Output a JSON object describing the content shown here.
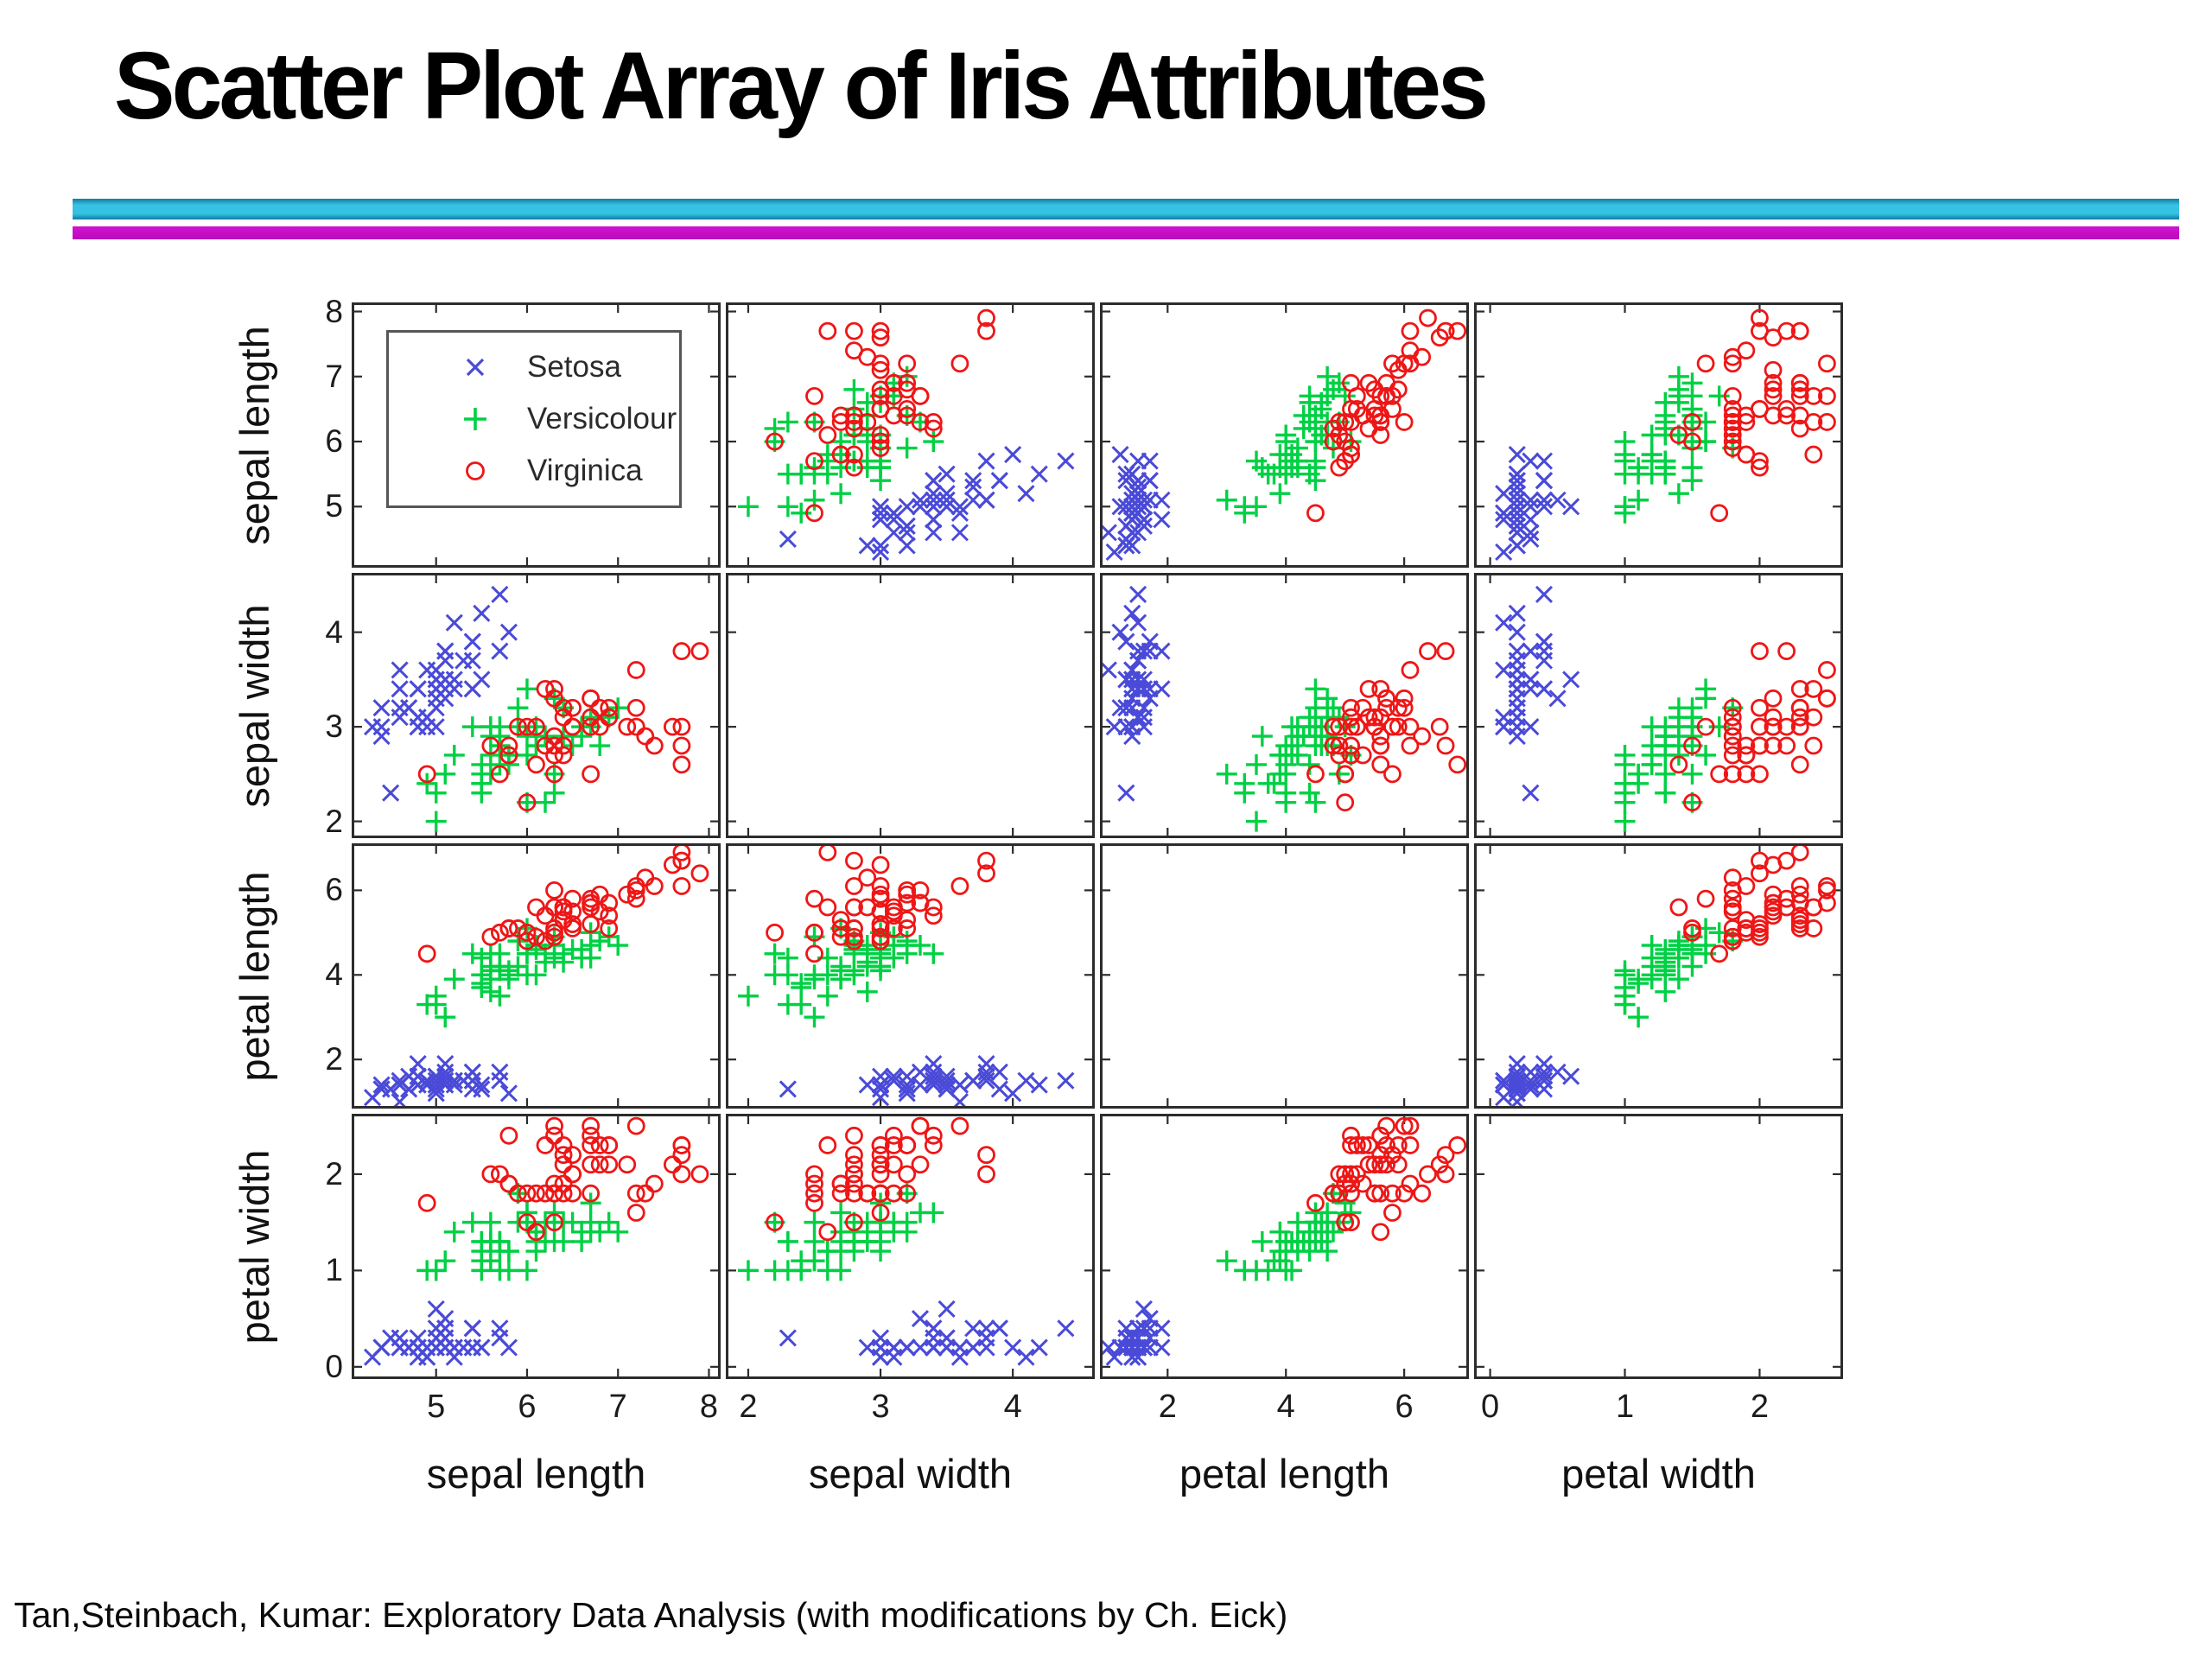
{
  "slide": {
    "title": "Scatter Plot Array of Iris Attributes",
    "footer": "Tan,Steinbach, Kumar: Exploratory Data Analysis (with modifications by Ch. Eick)"
  },
  "colors": {
    "title_text": "#000000",
    "divider_cyan": "#2ab2d4",
    "divider_magenta": "#c410c4",
    "cell_border": "#2c2c2c",
    "legend_border": "#565656",
    "axis_text": "#1c1c1c",
    "setosa": "#4a4ad8",
    "versicolour": "#00d044",
    "virginica": "#ee1616"
  },
  "legend": {
    "items": [
      {
        "label": "Setosa",
        "marker": "x",
        "color_key": "setosa"
      },
      {
        "label": "Versicolour",
        "marker": "+",
        "color_key": "versicolour"
      },
      {
        "label": "Virginica",
        "marker": "o",
        "color_key": "virginica"
      }
    ]
  },
  "chart_data": {
    "type": "scatter",
    "subtype": "scatter-plot-matrix",
    "title": "Scatter Plot Array of Iris Attributes",
    "grid": false,
    "empty_diagonal": true,
    "legend_position": "inside first diagonal cell (top-left)",
    "point_format": [
      "sepal_length",
      "sepal_width",
      "petal_length",
      "petal_width"
    ],
    "attributes": [
      {
        "key": "sepal_length",
        "label": "sepal length",
        "lim": [
          4.1,
          8.1
        ],
        "ticks": [
          5,
          6,
          7,
          8
        ]
      },
      {
        "key": "sepal_width",
        "label": "sepal width",
        "lim": [
          1.85,
          4.6
        ],
        "ticks": [
          2,
          3,
          4
        ]
      },
      {
        "key": "petal_length",
        "label": "petal length",
        "lim": [
          0.9,
          7.05
        ],
        "ticks": [
          2,
          4,
          6
        ]
      },
      {
        "key": "petal_width",
        "label": "petal width",
        "lim": [
          -0.1,
          2.6
        ],
        "ticks": [
          0,
          1,
          2
        ]
      }
    ],
    "series": [
      {
        "name": "Setosa",
        "marker": "x",
        "color": "#4a4ad8",
        "points": [
          [
            5.1,
            3.5,
            1.4,
            0.2
          ],
          [
            4.9,
            3.0,
            1.4,
            0.2
          ],
          [
            4.7,
            3.2,
            1.3,
            0.2
          ],
          [
            4.6,
            3.1,
            1.5,
            0.2
          ],
          [
            5.0,
            3.6,
            1.4,
            0.2
          ],
          [
            5.4,
            3.9,
            1.7,
            0.4
          ],
          [
            4.6,
            3.4,
            1.4,
            0.3
          ],
          [
            5.0,
            3.4,
            1.5,
            0.2
          ],
          [
            4.4,
            2.9,
            1.4,
            0.2
          ],
          [
            4.9,
            3.1,
            1.5,
            0.1
          ],
          [
            5.4,
            3.7,
            1.5,
            0.2
          ],
          [
            4.8,
            3.4,
            1.6,
            0.2
          ],
          [
            4.8,
            3.0,
            1.4,
            0.1
          ],
          [
            4.3,
            3.0,
            1.1,
            0.1
          ],
          [
            5.8,
            4.0,
            1.2,
            0.2
          ],
          [
            5.7,
            4.4,
            1.5,
            0.4
          ],
          [
            5.4,
            3.9,
            1.3,
            0.4
          ],
          [
            5.1,
            3.5,
            1.4,
            0.3
          ],
          [
            5.7,
            3.8,
            1.7,
            0.3
          ],
          [
            5.1,
            3.8,
            1.5,
            0.3
          ],
          [
            5.4,
            3.4,
            1.7,
            0.2
          ],
          [
            5.1,
            3.7,
            1.5,
            0.4
          ],
          [
            4.6,
            3.6,
            1.0,
            0.2
          ],
          [
            5.1,
            3.3,
            1.7,
            0.5
          ],
          [
            4.8,
            3.4,
            1.9,
            0.2
          ],
          [
            5.0,
            3.0,
            1.6,
            0.2
          ],
          [
            5.0,
            3.4,
            1.6,
            0.4
          ],
          [
            5.2,
            3.5,
            1.5,
            0.2
          ],
          [
            5.2,
            3.4,
            1.4,
            0.2
          ],
          [
            4.7,
            3.2,
            1.6,
            0.2
          ],
          [
            4.8,
            3.1,
            1.6,
            0.2
          ],
          [
            5.4,
            3.4,
            1.5,
            0.4
          ],
          [
            5.2,
            4.1,
            1.5,
            0.1
          ],
          [
            5.5,
            4.2,
            1.4,
            0.2
          ],
          [
            4.9,
            3.1,
            1.5,
            0.2
          ],
          [
            5.0,
            3.2,
            1.2,
            0.2
          ],
          [
            5.5,
            3.5,
            1.3,
            0.2
          ],
          [
            4.9,
            3.6,
            1.4,
            0.1
          ],
          [
            4.4,
            3.0,
            1.3,
            0.2
          ],
          [
            5.1,
            3.4,
            1.5,
            0.2
          ],
          [
            5.0,
            3.5,
            1.3,
            0.3
          ],
          [
            4.5,
            2.3,
            1.3,
            0.3
          ],
          [
            4.4,
            3.2,
            1.3,
            0.2
          ],
          [
            5.0,
            3.5,
            1.6,
            0.6
          ],
          [
            5.1,
            3.8,
            1.9,
            0.4
          ],
          [
            4.8,
            3.0,
            1.4,
            0.3
          ],
          [
            5.1,
            3.8,
            1.6,
            0.2
          ],
          [
            4.6,
            3.2,
            1.4,
            0.2
          ],
          [
            5.3,
            3.7,
            1.5,
            0.2
          ],
          [
            5.0,
            3.3,
            1.4,
            0.2
          ]
        ]
      },
      {
        "name": "Versicolour",
        "marker": "+",
        "color": "#00d044",
        "points": [
          [
            7.0,
            3.2,
            4.7,
            1.4
          ],
          [
            6.4,
            3.2,
            4.5,
            1.5
          ],
          [
            6.9,
            3.1,
            4.9,
            1.5
          ],
          [
            5.5,
            2.3,
            4.0,
            1.3
          ],
          [
            6.5,
            2.8,
            4.6,
            1.5
          ],
          [
            5.7,
            2.8,
            4.5,
            1.3
          ],
          [
            6.3,
            3.3,
            4.7,
            1.6
          ],
          [
            4.9,
            2.4,
            3.3,
            1.0
          ],
          [
            6.6,
            2.9,
            4.6,
            1.3
          ],
          [
            5.2,
            2.7,
            3.9,
            1.4
          ],
          [
            5.0,
            2.0,
            3.5,
            1.0
          ],
          [
            5.9,
            3.0,
            4.2,
            1.5
          ],
          [
            6.0,
            2.2,
            4.0,
            1.0
          ],
          [
            6.1,
            2.9,
            4.7,
            1.4
          ],
          [
            5.6,
            2.9,
            3.6,
            1.3
          ],
          [
            6.7,
            3.1,
            4.4,
            1.4
          ],
          [
            5.6,
            3.0,
            4.5,
            1.5
          ],
          [
            5.8,
            2.7,
            4.1,
            1.0
          ],
          [
            6.2,
            2.2,
            4.5,
            1.5
          ],
          [
            5.6,
            2.5,
            3.9,
            1.1
          ],
          [
            5.9,
            3.2,
            4.8,
            1.8
          ],
          [
            6.1,
            2.8,
            4.0,
            1.3
          ],
          [
            6.3,
            2.5,
            4.9,
            1.5
          ],
          [
            6.1,
            2.8,
            4.7,
            1.2
          ],
          [
            6.4,
            2.9,
            4.3,
            1.3
          ],
          [
            6.6,
            3.0,
            4.4,
            1.4
          ],
          [
            6.8,
            2.8,
            4.8,
            1.4
          ],
          [
            6.7,
            3.0,
            5.0,
            1.7
          ],
          [
            6.0,
            2.9,
            4.5,
            1.5
          ],
          [
            5.7,
            2.6,
            3.5,
            1.0
          ],
          [
            5.5,
            2.4,
            3.8,
            1.1
          ],
          [
            5.5,
            2.4,
            3.7,
            1.0
          ],
          [
            5.8,
            2.7,
            3.9,
            1.2
          ],
          [
            6.0,
            2.7,
            5.1,
            1.6
          ],
          [
            5.4,
            3.0,
            4.5,
            1.5
          ],
          [
            6.0,
            3.4,
            4.5,
            1.6
          ],
          [
            6.7,
            3.1,
            4.7,
            1.5
          ],
          [
            6.3,
            2.3,
            4.4,
            1.3
          ],
          [
            5.6,
            3.0,
            4.1,
            1.3
          ],
          [
            5.5,
            2.5,
            4.0,
            1.3
          ],
          [
            5.5,
            2.6,
            4.4,
            1.2
          ],
          [
            6.1,
            3.0,
            4.6,
            1.4
          ],
          [
            5.8,
            2.6,
            4.0,
            1.2
          ],
          [
            5.0,
            2.3,
            3.3,
            1.0
          ],
          [
            5.6,
            2.7,
            4.2,
            1.3
          ],
          [
            5.7,
            3.0,
            4.2,
            1.2
          ],
          [
            5.7,
            2.9,
            4.2,
            1.3
          ],
          [
            6.2,
            2.9,
            4.3,
            1.3
          ],
          [
            5.1,
            2.5,
            3.0,
            1.1
          ],
          [
            5.7,
            2.8,
            4.1,
            1.3
          ]
        ]
      },
      {
        "name": "Virginica",
        "marker": "o",
        "color": "#ee1616",
        "points": [
          [
            6.3,
            3.3,
            6.0,
            2.5
          ],
          [
            5.8,
            2.7,
            5.1,
            1.9
          ],
          [
            7.1,
            3.0,
            5.9,
            2.1
          ],
          [
            6.3,
            2.9,
            5.6,
            1.8
          ],
          [
            6.5,
            3.0,
            5.8,
            2.2
          ],
          [
            7.6,
            3.0,
            6.6,
            2.1
          ],
          [
            4.9,
            2.5,
            4.5,
            1.7
          ],
          [
            7.3,
            2.9,
            6.3,
            1.8
          ],
          [
            6.7,
            2.5,
            5.8,
            1.8
          ],
          [
            7.2,
            3.6,
            6.1,
            2.5
          ],
          [
            6.5,
            3.2,
            5.1,
            2.0
          ],
          [
            6.4,
            2.7,
            5.3,
            1.9
          ],
          [
            6.8,
            3.0,
            5.5,
            2.1
          ],
          [
            5.7,
            2.5,
            5.0,
            2.0
          ],
          [
            5.8,
            2.8,
            5.1,
            2.4
          ],
          [
            6.4,
            3.2,
            5.3,
            2.3
          ],
          [
            6.5,
            3.0,
            5.5,
            1.8
          ],
          [
            7.7,
            3.8,
            6.7,
            2.2
          ],
          [
            7.7,
            2.6,
            6.9,
            2.3
          ],
          [
            6.0,
            2.2,
            5.0,
            1.5
          ],
          [
            6.9,
            3.2,
            5.7,
            2.3
          ],
          [
            5.6,
            2.8,
            4.9,
            2.0
          ],
          [
            7.7,
            2.8,
            6.7,
            2.0
          ],
          [
            6.3,
            2.7,
            4.9,
            1.8
          ],
          [
            6.7,
            3.3,
            5.7,
            2.1
          ],
          [
            7.2,
            3.2,
            6.0,
            1.8
          ],
          [
            6.2,
            2.8,
            4.8,
            1.8
          ],
          [
            6.1,
            3.0,
            4.9,
            1.8
          ],
          [
            6.4,
            2.8,
            5.6,
            2.1
          ],
          [
            7.2,
            3.0,
            5.8,
            1.6
          ],
          [
            7.4,
            2.8,
            6.1,
            1.9
          ],
          [
            7.9,
            3.8,
            6.4,
            2.0
          ],
          [
            6.4,
            2.8,
            5.6,
            2.2
          ],
          [
            6.3,
            2.8,
            5.1,
            1.5
          ],
          [
            6.1,
            2.6,
            5.6,
            1.4
          ],
          [
            7.7,
            3.0,
            6.1,
            2.3
          ],
          [
            6.3,
            3.4,
            5.6,
            2.4
          ],
          [
            6.4,
            3.1,
            5.5,
            1.8
          ],
          [
            6.0,
            3.0,
            4.8,
            1.8
          ],
          [
            6.9,
            3.1,
            5.4,
            2.1
          ],
          [
            6.7,
            3.1,
            5.6,
            2.4
          ],
          [
            6.9,
            3.1,
            5.1,
            2.3
          ],
          [
            5.8,
            2.7,
            5.1,
            1.9
          ],
          [
            6.8,
            3.2,
            5.9,
            2.3
          ],
          [
            6.7,
            3.3,
            5.7,
            2.5
          ],
          [
            6.7,
            3.0,
            5.2,
            2.3
          ],
          [
            6.3,
            2.5,
            5.0,
            1.9
          ],
          [
            6.5,
            3.0,
            5.2,
            2.0
          ],
          [
            6.2,
            3.4,
            5.4,
            2.3
          ],
          [
            5.9,
            3.0,
            5.1,
            1.8
          ]
        ]
      }
    ]
  }
}
